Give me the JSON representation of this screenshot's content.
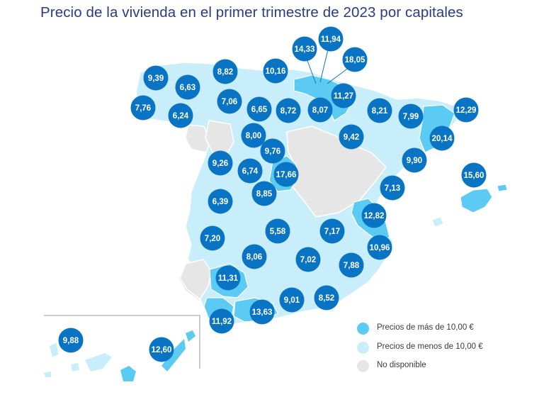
{
  "title": "Precio de la vivienda en el primer trimestre de 2023 por capitales",
  "colors": {
    "above": "#5ccbf3",
    "below": "#c9eefb",
    "unavailable": "#e6e6e6",
    "marker": "#0a74c4",
    "border": "#ffffff"
  },
  "legend": [
    {
      "label": "Precios de más de 10,00 €",
      "color": "#5ccbf3"
    },
    {
      "label": "Precios de menos de 10,00 €",
      "color": "#c9eefb"
    },
    {
      "label": "No disponible",
      "color": "#e6e6e6"
    }
  ],
  "markers": [
    {
      "value": "9,39"
    },
    {
      "value": "6,63"
    },
    {
      "value": "8,82"
    },
    {
      "value": "10,16"
    },
    {
      "value": "14,33"
    },
    {
      "value": "11,94"
    },
    {
      "value": "18,05"
    },
    {
      "value": "7,76"
    },
    {
      "value": "6,24"
    },
    {
      "value": "7,06"
    },
    {
      "value": "6,65"
    },
    {
      "value": "8,72"
    },
    {
      "value": "8,07"
    },
    {
      "value": "11,27"
    },
    {
      "value": "8,21"
    },
    {
      "value": "7,99"
    },
    {
      "value": "12,29"
    },
    {
      "value": "8,00"
    },
    {
      "value": "9,42"
    },
    {
      "value": "20,14"
    },
    {
      "value": "9,76"
    },
    {
      "value": "9,26"
    },
    {
      "value": "6,74"
    },
    {
      "value": "17,66"
    },
    {
      "value": "9,90"
    },
    {
      "value": "15,60"
    },
    {
      "value": "8,85"
    },
    {
      "value": "7,13"
    },
    {
      "value": "6,39"
    },
    {
      "value": "12,82"
    },
    {
      "value": "7,20"
    },
    {
      "value": "5,58"
    },
    {
      "value": "7,17"
    },
    {
      "value": "10,96"
    },
    {
      "value": "8,06"
    },
    {
      "value": "7,02"
    },
    {
      "value": "11,31"
    },
    {
      "value": "7,88"
    },
    {
      "value": "9,01"
    },
    {
      "value": "8,52"
    },
    {
      "value": "13,63"
    },
    {
      "value": "11,92"
    },
    {
      "value": "9,88"
    },
    {
      "value": "12,60"
    }
  ]
}
